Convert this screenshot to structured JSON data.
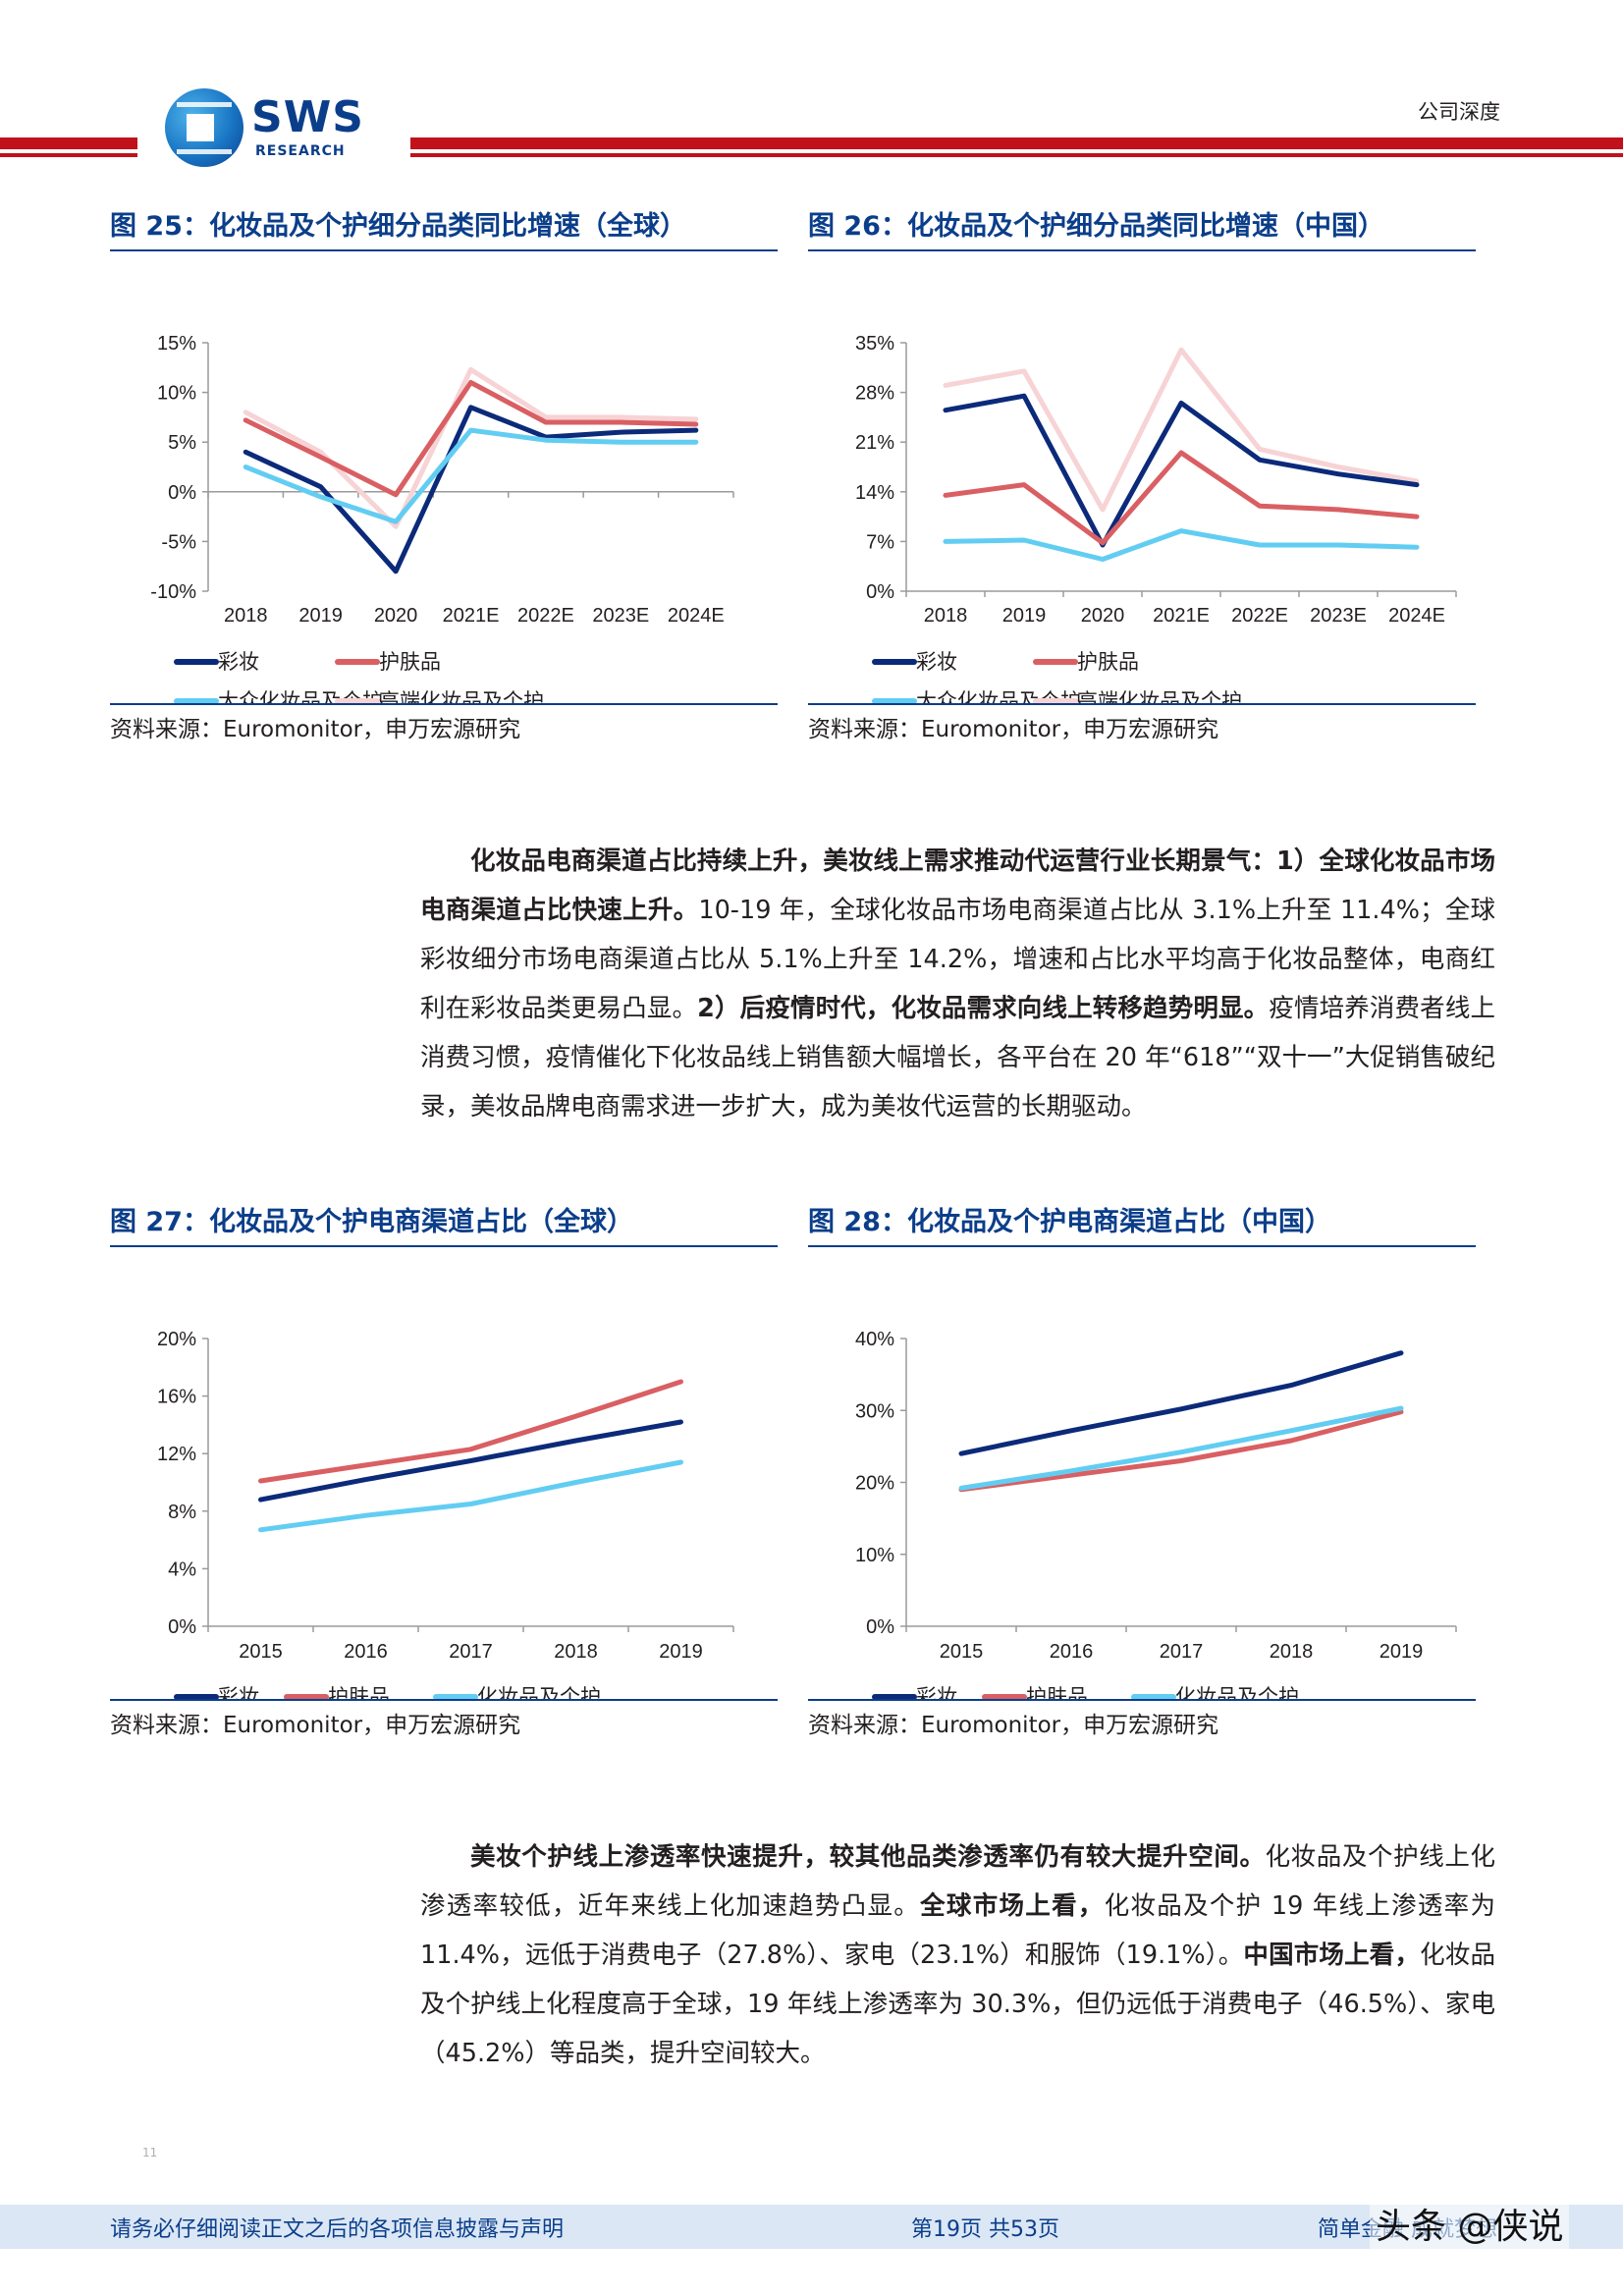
{
  "header": {
    "logo_text": "SWS",
    "logo_sub": "RESEARCH",
    "tag": "公司深度"
  },
  "colors": {
    "makeup": "#0b2a7a",
    "skincare": "#d95f63",
    "mass": "#62cdf2",
    "premium": "#f7d3d5",
    "grid": "#d8d8d8",
    "accent": "#0b3e8a",
    "header_red": "#c1121b"
  },
  "figures": [
    {
      "title": "图 25：化妆品及个护细分品类同比增速（全球）",
      "source": "资料来源：Euromonitor，申万宏源研究",
      "chart_data": {
        "type": "line",
        "categories": [
          "2018",
          "2019",
          "2020",
          "2021E",
          "2022E",
          "2023E",
          "2024E"
        ],
        "y_ticks": [
          15,
          10,
          5,
          0,
          -5,
          -10
        ],
        "y_tick_labels": [
          "15%",
          "10%",
          "5%",
          "0%",
          "-5%",
          "-10%"
        ],
        "ylim": [
          -10,
          15
        ],
        "legend_position": "bottom",
        "series": [
          {
            "name": "彩妆",
            "key": "makeup",
            "values": [
              4.0,
              0.5,
              -8.0,
              8.5,
              5.5,
              6.0,
              6.2
            ]
          },
          {
            "name": "护肤品",
            "key": "skincare",
            "values": [
              7.2,
              3.5,
              -0.3,
              11.0,
              7.0,
              7.0,
              6.8
            ]
          },
          {
            "name": "大众化妆品及个护",
            "key": "mass",
            "values": [
              2.5,
              -0.5,
              -3.0,
              6.2,
              5.2,
              5.0,
              5.0
            ]
          },
          {
            "name": "高端化妆品及个护",
            "key": "premium",
            "values": [
              8.0,
              4.0,
              -3.5,
              12.3,
              7.5,
              7.5,
              7.3
            ]
          }
        ]
      }
    },
    {
      "title": "图 26：化妆品及个护细分品类同比增速（中国）",
      "source": "资料来源：Euromonitor，申万宏源研究",
      "chart_data": {
        "type": "line",
        "categories": [
          "2018",
          "2019",
          "2020",
          "2021E",
          "2022E",
          "2023E",
          "2024E"
        ],
        "y_ticks": [
          35,
          28,
          21,
          14,
          7,
          0
        ],
        "y_tick_labels": [
          "35%",
          "28%",
          "21%",
          "14%",
          "7%",
          "0%"
        ],
        "ylim": [
          0,
          35
        ],
        "legend_position": "bottom",
        "series": [
          {
            "name": "彩妆",
            "key": "makeup",
            "values": [
              25.5,
              27.5,
              6.5,
              26.5,
              18.5,
              16.5,
              15.0
            ]
          },
          {
            "name": "护肤品",
            "key": "skincare",
            "values": [
              13.5,
              15.0,
              6.8,
              19.5,
              12.0,
              11.5,
              10.5
            ]
          },
          {
            "name": "大众化妆品及个护",
            "key": "mass",
            "values": [
              7.0,
              7.2,
              4.5,
              8.5,
              6.5,
              6.5,
              6.2
            ]
          },
          {
            "name": "高端化妆品及个护",
            "key": "premium",
            "values": [
              29.0,
              31.0,
              11.5,
              34.0,
              20.0,
              17.5,
              15.5
            ]
          }
        ]
      }
    },
    {
      "title": "图 27：化妆品及个护电商渠道占比（全球）",
      "source": "资料来源：Euromonitor，申万宏源研究",
      "chart_data": {
        "type": "line",
        "categories": [
          "2015",
          "2016",
          "2017",
          "2018",
          "2019"
        ],
        "y_ticks": [
          20,
          16,
          12,
          8,
          4,
          0
        ],
        "y_tick_labels": [
          "20%",
          "16%",
          "12%",
          "8%",
          "4%",
          "0%"
        ],
        "ylim": [
          0,
          20
        ],
        "legend_position": "bottom",
        "series": [
          {
            "name": "彩妆",
            "key": "makeup",
            "values": [
              8.8,
              10.2,
              11.5,
              12.9,
              14.2
            ]
          },
          {
            "name": "护肤品",
            "key": "skincare",
            "values": [
              10.1,
              11.2,
              12.3,
              14.6,
              17.0
            ]
          },
          {
            "name": "化妆品及个护",
            "key": "mass",
            "values": [
              6.7,
              7.7,
              8.5,
              10.0,
              11.4
            ]
          }
        ]
      }
    },
    {
      "title": "图 28：化妆品及个护电商渠道占比（中国）",
      "source": "资料来源：Euromonitor，申万宏源研究",
      "chart_data": {
        "type": "line",
        "categories": [
          "2015",
          "2016",
          "2017",
          "2018",
          "2019"
        ],
        "y_ticks": [
          40,
          30,
          20,
          10,
          0
        ],
        "y_tick_labels": [
          "40%",
          "30%",
          "20%",
          "10%",
          "0%"
        ],
        "ylim": [
          0,
          40
        ],
        "legend_position": "bottom",
        "series": [
          {
            "name": "彩妆",
            "key": "makeup",
            "values": [
              24.0,
              27.2,
              30.2,
              33.5,
              38.0
            ]
          },
          {
            "name": "护肤品",
            "key": "skincare",
            "values": [
              19.0,
              21.0,
              23.0,
              25.8,
              29.8
            ]
          },
          {
            "name": "化妆品及个护",
            "key": "mass",
            "values": [
              19.2,
              21.6,
              24.2,
              27.2,
              30.3
            ]
          }
        ]
      }
    }
  ],
  "para1": {
    "b1": "化妆品电商渠道占比持续上升，美妆线上需求推动代运营行业长期景气：1）全球化妆品市场电商渠道占比快速上升。",
    "t1": "10-19 年，全球化妆品市场电商渠道占比从 3.1%上升至 11.4%；全球彩妆细分市场电商渠道占比从 5.1%上升至 14.2%，增速和占比水平均高于化妆品整体，电商红利在彩妆品类更易凸显。",
    "b2": "2）后疫情时代，化妆品需求向线上转移趋势明显。",
    "t2": "疫情培养消费者线上消费习惯，疫情催化下化妆品线上销售额大幅增长，各平台在 20 年“618”“双十一”大促销售破纪录，美妆品牌电商需求进一步扩大，成为美妆代运营的长期驱动。"
  },
  "para2": {
    "b1": "美妆个护线上渗透率快速提升，较其他品类渗透率仍有较大提升空间。",
    "t1": "化妆品及个护线上化渗透率较低，近年来线上化加速趋势凸显。",
    "b2": "全球市场上看，",
    "t2": "化妆品及个护 19 年线上渗透率为 11.4%，远低于消费电子（27.8%）、家电（23.1%）和服饰（19.1%）。",
    "b3": "中国市场上看，",
    "t3": "化妆品及个护线上化程度高于全球，19 年线上渗透率为 30.3%，但仍远低于消费电子（46.5%）、家电（45.2%）等品类，提升空间较大。"
  },
  "footer": {
    "mark": "11",
    "left": "请务必仔细阅读正文之后的各项信息披露与声明",
    "mid": "第19页 共53页",
    "right": "简单金融 成就梦想",
    "watermark": "头条 @侠说"
  }
}
